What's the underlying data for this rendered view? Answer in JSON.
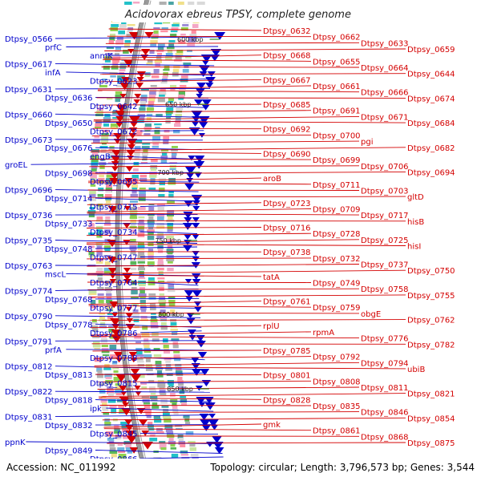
{
  "title": "Acidovorax ebreus TPSY, complete genome",
  "accession": "Accession: NC_011992",
  "summary": "Topology: circular; Length: 3,796,573 bp; Genes: 3,544",
  "ticks": [
    "600 kbp",
    "650 kbp",
    "700 kbp",
    "750 kbp",
    "800 kbp",
    "850 kbp"
  ],
  "colors": {
    "left": "#0000cc",
    "right": "#d40000",
    "backbone": "#9a9a9a",
    "tick": "#2e8b2e"
  },
  "left_labels": [
    "Dtpsy_0566",
    "prfC",
    "anmK",
    "Dtpsy_0617",
    "infA",
    "Dtpsy_0623",
    "Dtpsy_0631",
    "Dtpsy_0636",
    "Dtpsy_0642",
    "Dtpsy_0660",
    "Dtpsy_0650",
    "Dtpsy_0672",
    "Dtpsy_0673",
    "Dtpsy_0676",
    "engB",
    "groEL",
    "Dtpsy_0698",
    "Dtpsy_0695",
    "Dtpsy_0696",
    "Dtpsy_0714",
    "Dtpsy_0715",
    "Dtpsy_0736",
    "Dtpsy_0733",
    "Dtpsy_0734",
    "Dtpsy_0735",
    "Dtpsy_0748",
    "Dtpsy_0747",
    "Dtpsy_0763",
    "mscL",
    "Dtpsy_0764",
    "Dtpsy_0774",
    "Dtpsy_0768",
    "Dtpsy_0777",
    "Dtpsy_0790",
    "Dtpsy_0778",
    "Dtpsy_0786",
    "Dtpsy_0791",
    "prfA",
    "Dtpsy_0788",
    "Dtpsy_0812",
    "Dtpsy_0813",
    "Dtpsy_0815",
    "Dtpsy_0822",
    "Dtpsy_0818",
    "ipk",
    "Dtpsy_0831",
    "Dtpsy_0832",
    "Dtpsy_0845",
    "ppnK",
    "Dtpsy_0849",
    "Dtpsy_0866"
  ],
  "right_labels": [
    "Dtpsy_0632",
    "Dtpsy_0662",
    "Dtpsy_0633",
    "Dtpsy_0659",
    "Dtpsy_0668",
    "Dtpsy_0655",
    "Dtpsy_0664",
    "Dtpsy_0644",
    "Dtpsy_0667",
    "Dtpsy_0661",
    "Dtpsy_0666",
    "Dtpsy_0674",
    "Dtpsy_0685",
    "Dtpsy_0691",
    "Dtpsy_0671",
    "Dtpsy_0684",
    "Dtpsy_0692",
    "Dtpsy_0700",
    "pgi",
    "Dtpsy_0682",
    "Dtpsy_0690",
    "Dtpsy_0699",
    "Dtpsy_0706",
    "Dtpsy_0694",
    "aroB",
    "Dtpsy_0711",
    "Dtpsy_0703",
    "gltD",
    "Dtpsy_0723",
    "Dtpsy_0709",
    "Dtpsy_0717",
    "hisB",
    "Dtpsy_0716",
    "Dtpsy_0728",
    "Dtpsy_0725",
    "hisI",
    "Dtpsy_0738",
    "Dtpsy_0732",
    "Dtpsy_0737",
    "Dtpsy_0750",
    "tatA",
    "Dtpsy_0749",
    "Dtpsy_0758",
    "Dtpsy_0755",
    "Dtpsy_0761",
    "Dtpsy_0759",
    "obgE",
    "Dtpsy_0762",
    "rplU",
    "rpmA",
    "Dtpsy_0776",
    "Dtpsy_0782",
    "Dtpsy_0785",
    "Dtpsy_0792",
    "Dtpsy_0794",
    "ubiB",
    "Dtpsy_0801",
    "Dtpsy_0808",
    "Dtpsy_0811",
    "Dtpsy_0821",
    "Dtpsy_0828",
    "Dtpsy_0835",
    "Dtpsy_0846",
    "Dtpsy_0854",
    "gmk",
    "Dtpsy_0861",
    "Dtpsy_0868",
    "Dtpsy_0875"
  ]
}
